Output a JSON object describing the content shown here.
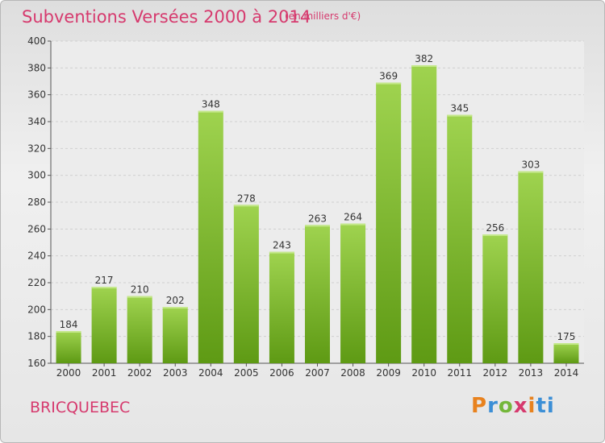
{
  "title": "Subventions Versées 2000 à 2014",
  "subtitle": "(en milliers d'€)",
  "town": "BRICQUEBEC",
  "logo": [
    "P",
    "r",
    "o",
    "x",
    "i",
    "ti"
  ],
  "colors": {
    "bar_top": "#9fd34f",
    "bar_bottom": "#5e9a14",
    "title": "#d63a6e"
  },
  "chart_data": {
    "type": "bar",
    "title": "Subventions Versées 2000 à 2014",
    "categories": [
      "2000",
      "2001",
      "2002",
      "2003",
      "2004",
      "2005",
      "2006",
      "2007",
      "2008",
      "2009",
      "2010",
      "2011",
      "2012",
      "2013",
      "2014"
    ],
    "values": [
      184,
      217,
      210,
      202,
      348,
      278,
      243,
      263,
      264,
      369,
      382,
      345,
      256,
      303,
      175
    ],
    "ylim": [
      160,
      400
    ],
    "yticks": [
      160,
      180,
      200,
      220,
      240,
      260,
      280,
      300,
      320,
      340,
      360,
      380,
      400
    ],
    "xlabel": "",
    "ylabel": "",
    "grid": true,
    "data_labels": true
  }
}
